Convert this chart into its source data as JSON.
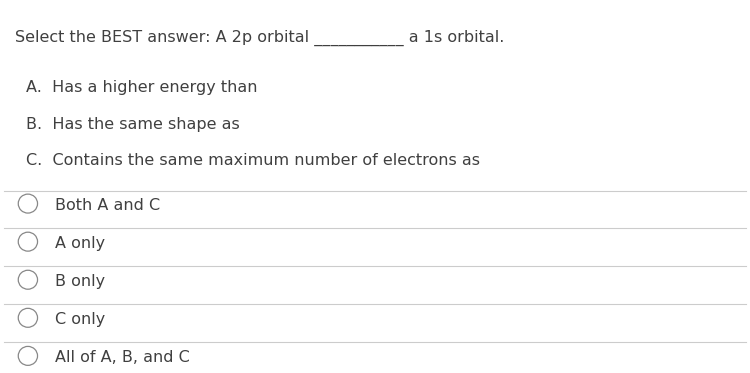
{
  "bg_color": "#ffffff",
  "text_color": "#404040",
  "line_color": "#cccccc",
  "circle_color": "#888888",
  "title_line1": "Select the BEST answer: A 2p orbital ___________ a 1s orbital.",
  "sub_options": [
    "A.  Has a higher energy than",
    "B.  Has the same shape as",
    "C.  Contains the same maximum number of electrons as"
  ],
  "answer_options": [
    "Both A and C",
    "A only",
    "B only",
    "C only",
    "All of A, B, and C"
  ],
  "title_fontsize": 11.5,
  "sub_fontsize": 11.5,
  "answer_fontsize": 11.5,
  "fig_width": 7.5,
  "fig_height": 3.73
}
